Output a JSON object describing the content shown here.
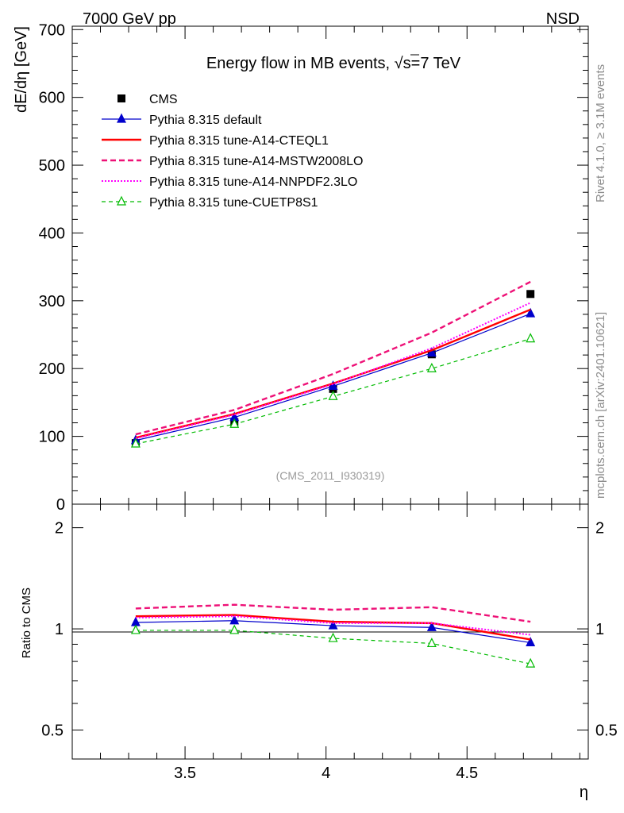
{
  "header": {
    "left": "7000 GeV pp",
    "right": "NSD"
  },
  "side_text": {
    "rivet": "Rivet 4.1.0, ≥ 3.1M events",
    "mcplots": "mcplots.cern.ch [arXiv:2401.10621]"
  },
  "colors": {
    "cms": "#000000",
    "default": "#0000cc",
    "cteql1": "#ff0000",
    "mstw": "#ee1177",
    "nnpdf": "#ff00ff",
    "cuetp8s1": "#00bb00",
    "frame": "#000000"
  },
  "chart_data": [
    {
      "type": "line",
      "title_prefix": "Energy flow in MB events, ",
      "title_sqrt": "√",
      "title_suffix": "s=7 TeV",
      "watermark": "(CMS_2011_I930319)",
      "xlabel": "η",
      "ylabel": "dE/dη [GeV]",
      "xlim": [
        3.1,
        4.93
      ],
      "ylim": [
        0,
        705
      ],
      "y_ticks": [
        0,
        100,
        200,
        300,
        400,
        500,
        600,
        700
      ],
      "y_tick_labels": [
        "0",
        "100",
        "200",
        "300",
        "400",
        "500",
        "600",
        "700"
      ],
      "x": [
        3.325,
        3.675,
        4.025,
        4.375,
        4.725
      ],
      "series": [
        {
          "key": "cms",
          "name": "CMS",
          "values": [
            90,
            121,
            170,
            221,
            310
          ]
        },
        {
          "key": "default",
          "name": "Pythia 8.315 default",
          "values": [
            94,
            128,
            174,
            223,
            281
          ]
        },
        {
          "key": "cteql1",
          "name": "Pythia 8.315 tune-A14-CTEQL1",
          "values": [
            98,
            133,
            178,
            227,
            287
          ]
        },
        {
          "key": "mstw",
          "name": "Pythia 8.315 tune-A14-MSTW2008LO",
          "values": [
            103,
            139,
            192,
            253,
            328
          ]
        },
        {
          "key": "nnpdf",
          "name": "Pythia 8.315 tune-A14-NNPDF2.3LO",
          "values": [
            97,
            132,
            177,
            230,
            297
          ]
        },
        {
          "key": "cuetp8s1",
          "name": "Pythia 8.315 tune-CUETP8S1",
          "values": [
            89,
            118,
            159,
            200,
            244
          ]
        }
      ]
    },
    {
      "type": "line",
      "ylabel": "Ratio to CMS",
      "xlabel": "η",
      "scale": "log",
      "xlim": [
        3.1,
        4.93
      ],
      "ylim": [
        0.41,
        2.35
      ],
      "y_ticks": [
        0.5,
        1,
        2
      ],
      "y_tick_labels": [
        "0.5",
        "1",
        "2"
      ],
      "x_ticks": [
        3.5,
        4,
        4.5
      ],
      "x_tick_labels": [
        "3.5",
        "4",
        "4.5"
      ],
      "x": [
        3.325,
        3.675,
        4.025,
        4.375,
        4.725
      ],
      "series": [
        {
          "key": "default",
          "name": "Pythia 8.315 default",
          "values": [
            1.045,
            1.058,
            1.022,
            1.01,
            0.91
          ]
        },
        {
          "key": "cteql1",
          "name": "Pythia 8.315 tune-A14-CTEQL1",
          "values": [
            1.09,
            1.1,
            1.05,
            1.04,
            0.93
          ]
        },
        {
          "key": "mstw",
          "name": "Pythia 8.315 tune-A14-MSTW2008LO",
          "values": [
            1.15,
            1.18,
            1.14,
            1.16,
            1.05
          ]
        },
        {
          "key": "nnpdf",
          "name": "Pythia 8.315 tune-A14-NNPDF2.3LO",
          "values": [
            1.08,
            1.09,
            1.04,
            1.04,
            0.96
          ]
        },
        {
          "key": "cuetp8s1",
          "name": "Pythia 8.315 tune-CUETP8S1",
          "values": [
            0.99,
            0.99,
            0.937,
            0.905,
            0.787
          ]
        }
      ]
    }
  ]
}
